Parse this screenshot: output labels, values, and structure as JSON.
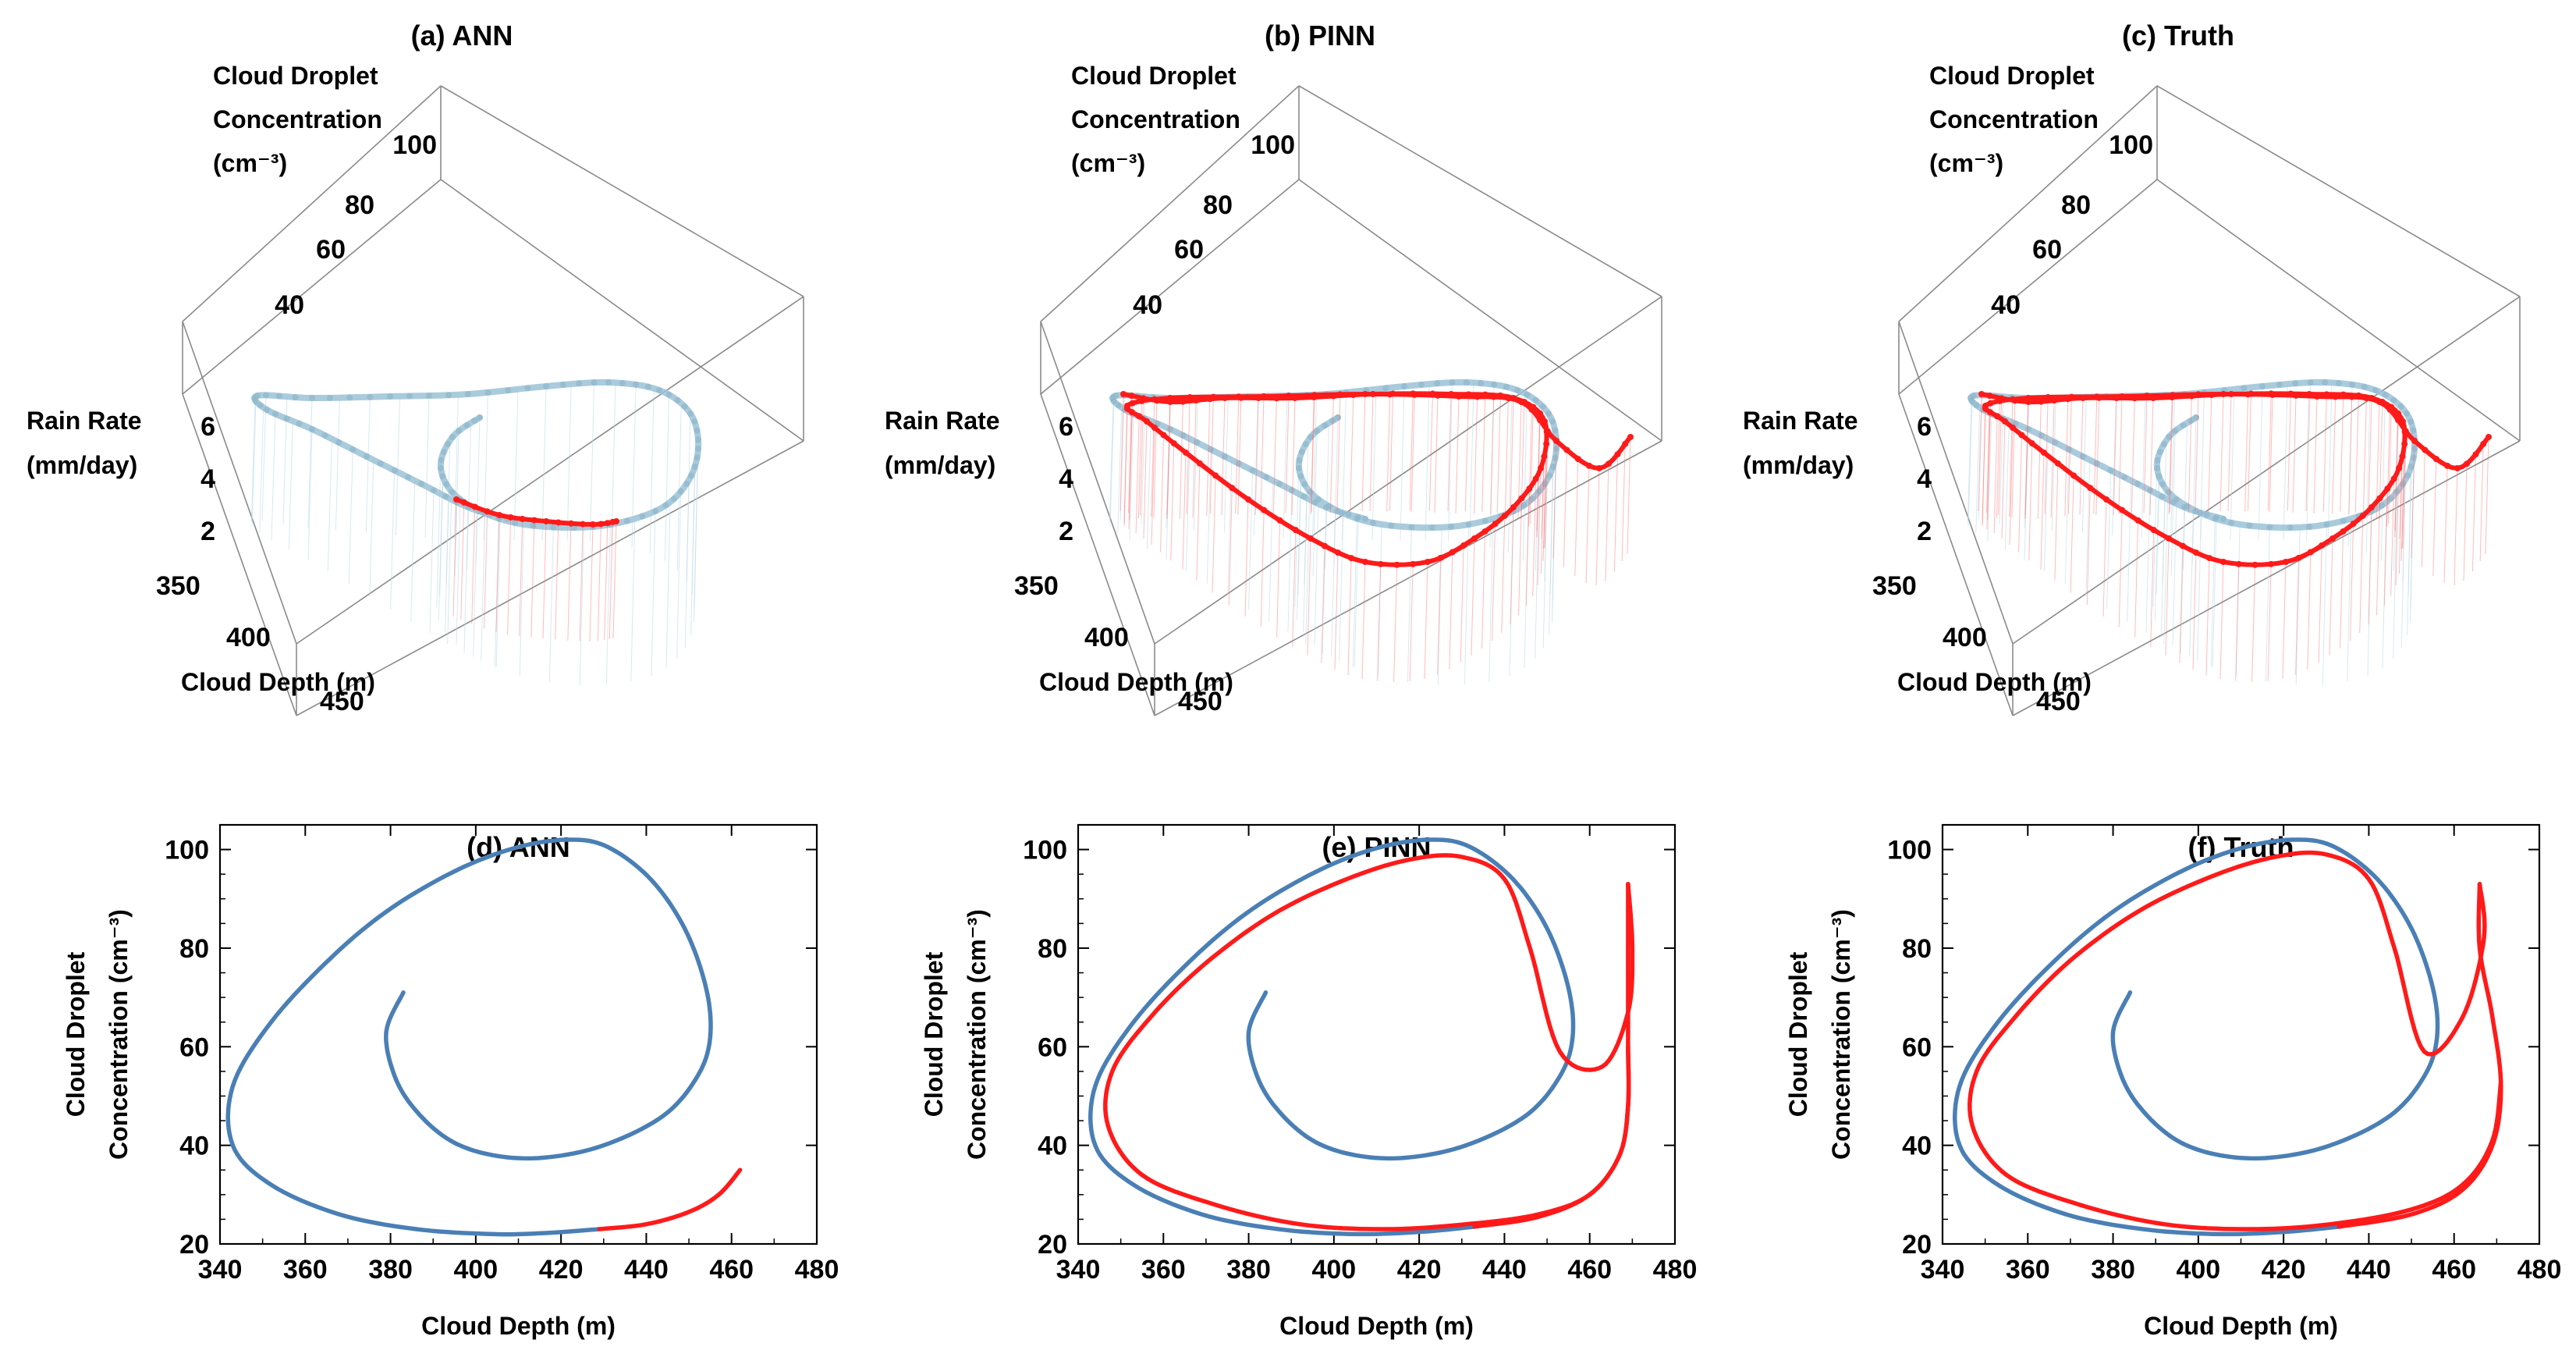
{
  "colors": {
    "history": "#4a7fb5",
    "history_3d": "#9bc2d6",
    "prediction": "#ff1a1a",
    "box": "#8a8a8a"
  },
  "chart_data": [
    {
      "type": "line3d",
      "panel": "a",
      "title": "(a) ANN",
      "zlabel_lines": [
        "Cloud Droplet",
        "Concentration",
        "(cm⁻³)"
      ],
      "ylabel_lines": [
        "Rain Rate",
        "(mm/day)"
      ],
      "xlabel": "Cloud Depth (m)",
      "x_ticks": [
        "350",
        "400",
        "450"
      ],
      "y_ticks": [
        "2",
        "4",
        "6"
      ],
      "z_ticks": [
        "40",
        "60",
        "80",
        "100"
      ],
      "prediction_follows_truth": false
    },
    {
      "type": "line3d",
      "panel": "b",
      "title": "(b) PINN",
      "zlabel_lines": [
        "Cloud Droplet",
        "Concentration",
        "(cm⁻³)"
      ],
      "ylabel_lines": [
        "Rain Rate",
        "(mm/day)"
      ],
      "xlabel": "Cloud Depth (m)",
      "x_ticks": [
        "350",
        "400",
        "450"
      ],
      "y_ticks": [
        "2",
        "4",
        "6"
      ],
      "z_ticks": [
        "40",
        "60",
        "80",
        "100"
      ],
      "prediction_follows_truth": true
    },
    {
      "type": "line3d",
      "panel": "c",
      "title": "(c) Truth",
      "zlabel_lines": [
        "Cloud Droplet",
        "Concentration",
        "(cm⁻³)"
      ],
      "ylabel_lines": [
        "Rain Rate",
        "(mm/day)"
      ],
      "xlabel": "Cloud Depth (m)",
      "x_ticks": [
        "350",
        "400",
        "450"
      ],
      "y_ticks": [
        "2",
        "4",
        "6"
      ],
      "z_ticks": [
        "40",
        "60",
        "80",
        "100"
      ],
      "prediction_follows_truth": true
    },
    {
      "type": "line",
      "panel": "d",
      "title": "(d) ANN",
      "xlabel": "Cloud Depth (m)",
      "ylabel_lines": [
        "Cloud Droplet",
        "Concentration (cm⁻³)"
      ],
      "xlim": [
        340,
        480
      ],
      "ylim": [
        20,
        105
      ],
      "x_ticks": [
        340,
        360,
        380,
        400,
        420,
        440,
        460,
        480
      ],
      "y_ticks": [
        20,
        40,
        60,
        80,
        100
      ],
      "series": [
        {
          "points": [
            [
              383,
              71
            ],
            [
              379,
              63
            ],
            [
              381,
              54
            ],
            [
              386,
              47
            ],
            [
              394,
              41
            ],
            [
              404,
              38
            ],
            [
              416,
              37.5
            ],
            [
              430,
              40
            ],
            [
              444,
              46
            ],
            [
              452,
              54
            ],
            [
              455,
              62
            ],
            [
              454,
              72
            ],
            [
              449,
              84
            ],
            [
              441,
              94
            ],
            [
              431,
              100.5
            ],
            [
              422,
              102
            ],
            [
              410,
              100.5
            ],
            [
              396,
              96
            ],
            [
              380,
              88
            ],
            [
              366,
              78
            ],
            [
              352,
              65
            ],
            [
              343,
              52
            ],
            [
              343,
              40
            ],
            [
              352,
              32
            ],
            [
              368,
              26
            ],
            [
              386,
              23
            ],
            [
              404,
              22
            ],
            [
              416,
              22.2
            ],
            [
              429,
              23
            ]
          ]
        },
        {
          "points": [
            [
              429,
              23
            ],
            [
              440,
              24
            ],
            [
              450,
              26.5
            ],
            [
              457,
              30
            ],
            [
              462,
              35
            ]
          ]
        }
      ]
    },
    {
      "type": "line",
      "panel": "e",
      "title": "(e) PINN",
      "xlabel": "Cloud Depth (m)",
      "ylabel_lines": [
        "Cloud Droplet",
        "Concentration (cm⁻³)"
      ],
      "xlim": [
        340,
        480
      ],
      "ylim": [
        20,
        105
      ],
      "x_ticks": [
        340,
        360,
        380,
        400,
        420,
        440,
        460,
        480
      ],
      "y_ticks": [
        20,
        40,
        60,
        80,
        100
      ],
      "series": [
        {
          "points": [
            [
              384,
              71
            ],
            [
              380,
              63
            ],
            [
              382,
              54
            ],
            [
              387,
              47
            ],
            [
              395,
              41
            ],
            [
              405,
              38
            ],
            [
              417,
              37.5
            ],
            [
              431,
              40
            ],
            [
              445,
              46
            ],
            [
              453,
              54
            ],
            [
              456,
              62
            ],
            [
              455,
              72
            ],
            [
              450,
              84
            ],
            [
              442,
              94
            ],
            [
              432,
              100.5
            ],
            [
              423,
              102
            ],
            [
              411,
              100.5
            ],
            [
              397,
              96
            ],
            [
              381,
              88
            ],
            [
              367,
              78
            ],
            [
              353,
              65
            ],
            [
              344,
              52
            ],
            [
              344,
              40
            ],
            [
              353,
              32
            ],
            [
              369,
              26
            ],
            [
              387,
              23
            ],
            [
              405,
              22
            ],
            [
              421,
              22.5
            ],
            [
              433,
              23.5
            ]
          ]
        },
        {
          "points": [
            [
              433,
              23.5
            ],
            [
              448,
              25.5
            ],
            [
              460,
              30
            ],
            [
              467,
              38
            ],
            [
              469,
              48
            ],
            [
              469,
              60
            ],
            [
              469,
              75
            ],
            [
              469,
              93
            ]
          ]
        },
        {
          "points": [
            [
              469,
              93
            ],
            [
              470,
              80
            ],
            [
              469,
              67
            ],
            [
              463,
              56
            ],
            [
              453,
              59
            ],
            [
              446,
              80
            ],
            [
              440,
              94
            ],
            [
              430,
              98.5
            ],
            [
              418,
              98
            ],
            [
              403,
              94
            ],
            [
              386,
              87
            ],
            [
              370,
              77
            ],
            [
              357,
              66
            ],
            [
              348,
              55
            ],
            [
              347,
              44
            ],
            [
              355,
              34
            ],
            [
              372,
              28
            ],
            [
              392,
              24
            ],
            [
              412,
              23
            ],
            [
              431,
              24
            ],
            [
              448,
              26
            ],
            [
              460,
              30
            ],
            [
              467,
              38
            ],
            [
              469,
              48
            ],
            [
              469,
              60
            ]
          ]
        }
      ]
    },
    {
      "type": "line",
      "panel": "f",
      "title": "(f) Truth",
      "xlabel": "Cloud Depth (m)",
      "ylabel_lines": [
        "Cloud Droplet",
        "Concentration (cm⁻³)"
      ],
      "xlim": [
        340,
        480
      ],
      "ylim": [
        20,
        105
      ],
      "x_ticks": [
        340,
        360,
        380,
        400,
        420,
        440,
        460,
        480
      ],
      "y_ticks": [
        20,
        40,
        60,
        80,
        100
      ],
      "series": [
        {
          "points": [
            [
              384,
              71
            ],
            [
              380,
              63
            ],
            [
              382,
              54
            ],
            [
              387,
              47
            ],
            [
              395,
              41
            ],
            [
              405,
              38
            ],
            [
              417,
              37.5
            ],
            [
              431,
              40
            ],
            [
              445,
              46
            ],
            [
              453,
              54
            ],
            [
              456,
              62
            ],
            [
              455,
              72
            ],
            [
              450,
              84
            ],
            [
              442,
              94
            ],
            [
              432,
              100.5
            ],
            [
              423,
              102
            ],
            [
              411,
              100.5
            ],
            [
              397,
              96
            ],
            [
              381,
              88
            ],
            [
              367,
              78
            ],
            [
              353,
              65
            ],
            [
              344,
              52
            ],
            [
              344,
              40
            ],
            [
              353,
              32
            ],
            [
              369,
              26
            ],
            [
              387,
              23
            ],
            [
              405,
              22
            ],
            [
              421,
              22.5
            ],
            [
              433,
              23.5
            ]
          ]
        },
        {
          "points": [
            [
              433,
              23.5
            ],
            [
              450,
              26
            ],
            [
              462,
              31
            ],
            [
              469,
              40
            ],
            [
              471,
              52
            ],
            [
              469,
              66
            ],
            [
              466,
              80
            ],
            [
              466,
              93
            ]
          ]
        },
        {
          "points": [
            [
              466,
              93
            ],
            [
              467,
              82
            ],
            [
              462,
              66
            ],
            [
              453,
              59
            ],
            [
              446,
              80
            ],
            [
              440,
              94
            ],
            [
              430,
              99
            ],
            [
              418,
              98.5
            ],
            [
              403,
              94.5
            ],
            [
              386,
              87.5
            ],
            [
              370,
              77.5
            ],
            [
              357,
              66
            ],
            [
              348,
              55
            ],
            [
              347,
              44
            ],
            [
              355,
              34
            ],
            [
              372,
              28
            ],
            [
              392,
              24
            ],
            [
              412,
              23
            ],
            [
              431,
              24
            ],
            [
              450,
              27
            ],
            [
              462,
              32
            ],
            [
              469,
              41
            ],
            [
              471,
              53
            ]
          ]
        }
      ]
    }
  ]
}
